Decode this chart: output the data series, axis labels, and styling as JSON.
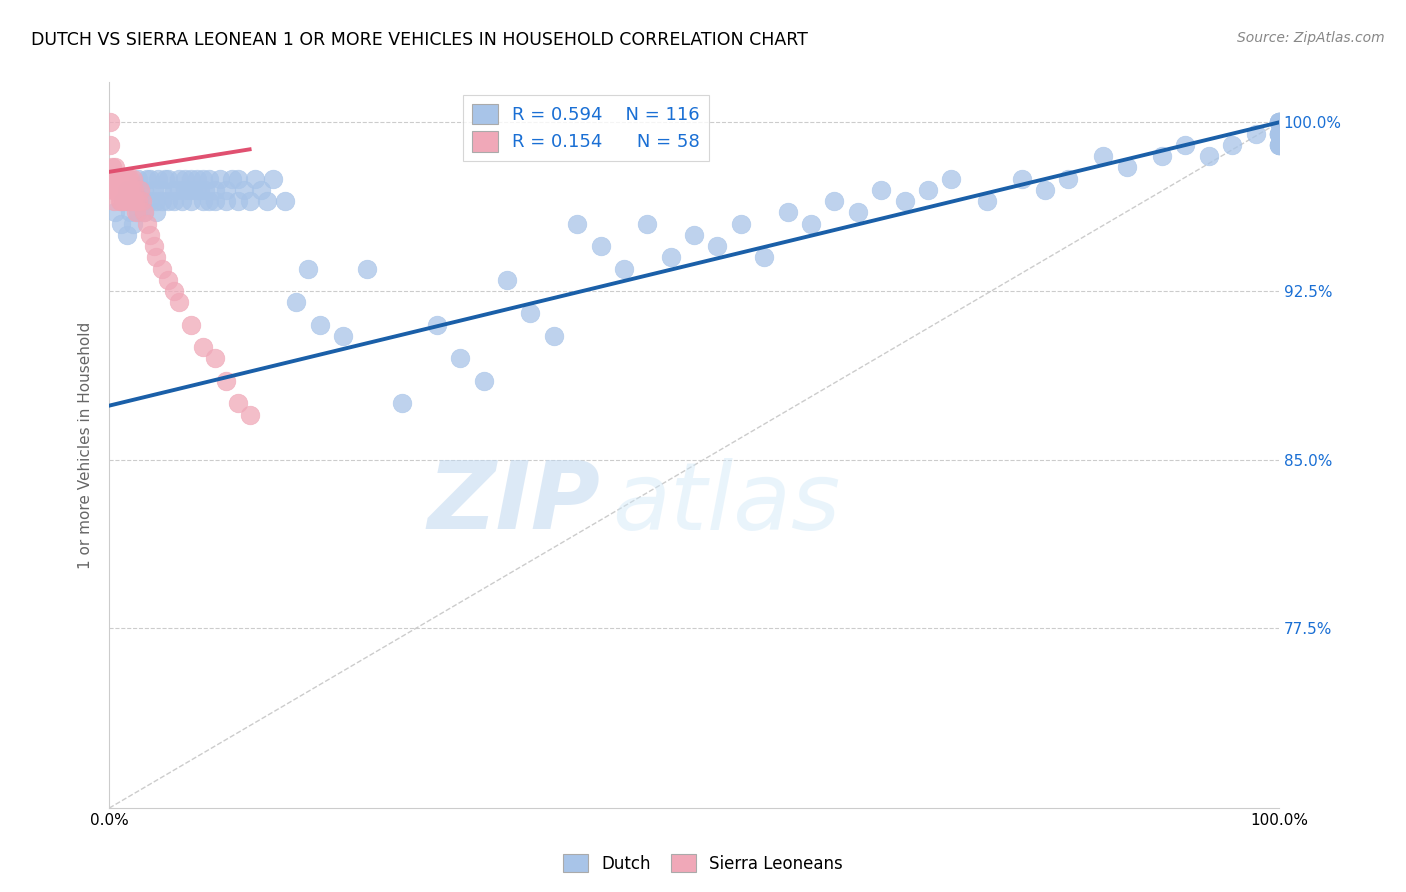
{
  "title": "DUTCH VS SIERRA LEONEAN 1 OR MORE VEHICLES IN HOUSEHOLD CORRELATION CHART",
  "source": "Source: ZipAtlas.com",
  "ylabel": "1 or more Vehicles in Household",
  "xmin": 0.0,
  "xmax": 1.0,
  "ymin": 0.695,
  "ymax": 1.018,
  "yticks": [
    0.775,
    0.85,
    0.925,
    1.0
  ],
  "ytick_labels": [
    "77.5%",
    "85.0%",
    "92.5%",
    "100.0%"
  ],
  "blue_R": 0.594,
  "blue_N": 116,
  "pink_R": 0.154,
  "pink_N": 58,
  "blue_color": "#a8c4e8",
  "pink_color": "#f0a8b8",
  "blue_line_color": "#1a5fa8",
  "pink_line_color": "#e05070",
  "blue_label": "Dutch",
  "pink_label": "Sierra Leoneans",
  "watermark_zip": "ZIP",
  "watermark_atlas": "atlas",
  "blue_scatter_x": [
    0.005,
    0.01,
    0.012,
    0.015,
    0.015,
    0.018,
    0.02,
    0.02,
    0.022,
    0.025,
    0.025,
    0.028,
    0.03,
    0.03,
    0.032,
    0.035,
    0.035,
    0.038,
    0.04,
    0.04,
    0.042,
    0.045,
    0.045,
    0.048,
    0.05,
    0.05,
    0.055,
    0.055,
    0.06,
    0.06,
    0.062,
    0.065,
    0.065,
    0.068,
    0.07,
    0.07,
    0.072,
    0.075,
    0.075,
    0.078,
    0.08,
    0.08,
    0.082,
    0.085,
    0.085,
    0.09,
    0.09,
    0.095,
    0.1,
    0.1,
    0.105,
    0.11,
    0.11,
    0.115,
    0.12,
    0.125,
    0.13,
    0.135,
    0.14,
    0.15,
    0.16,
    0.17,
    0.18,
    0.2,
    0.22,
    0.25,
    0.28,
    0.3,
    0.32,
    0.34,
    0.36,
    0.38,
    0.4,
    0.42,
    0.44,
    0.46,
    0.48,
    0.5,
    0.52,
    0.54,
    0.56,
    0.58,
    0.6,
    0.62,
    0.64,
    0.66,
    0.68,
    0.7,
    0.72,
    0.75,
    0.78,
    0.8,
    0.82,
    0.85,
    0.87,
    0.9,
    0.92,
    0.94,
    0.96,
    0.98,
    1.0,
    1.0,
    1.0,
    1.0,
    1.0,
    1.0,
    1.0,
    1.0,
    1.0,
    1.0,
    1.0,
    1.0,
    1.0,
    1.0,
    1.0,
    1.0
  ],
  "blue_scatter_y": [
    0.96,
    0.955,
    0.965,
    0.95,
    0.97,
    0.96,
    0.955,
    0.965,
    0.97,
    0.96,
    0.975,
    0.965,
    0.97,
    0.96,
    0.975,
    0.965,
    0.975,
    0.97,
    0.96,
    0.965,
    0.975,
    0.97,
    0.965,
    0.975,
    0.965,
    0.975,
    0.97,
    0.965,
    0.97,
    0.975,
    0.965,
    0.97,
    0.975,
    0.97,
    0.975,
    0.965,
    0.97,
    0.97,
    0.975,
    0.97,
    0.965,
    0.975,
    0.97,
    0.965,
    0.975,
    0.965,
    0.97,
    0.975,
    0.965,
    0.97,
    0.975,
    0.965,
    0.975,
    0.97,
    0.965,
    0.975,
    0.97,
    0.965,
    0.975,
    0.965,
    0.92,
    0.935,
    0.91,
    0.905,
    0.935,
    0.875,
    0.91,
    0.895,
    0.885,
    0.93,
    0.915,
    0.905,
    0.955,
    0.945,
    0.935,
    0.955,
    0.94,
    0.95,
    0.945,
    0.955,
    0.94,
    0.96,
    0.955,
    0.965,
    0.96,
    0.97,
    0.965,
    0.97,
    0.975,
    0.965,
    0.975,
    0.97,
    0.975,
    0.985,
    0.98,
    0.985,
    0.99,
    0.985,
    0.99,
    0.995,
    1.0,
    0.995,
    1.0,
    0.99,
    0.995,
    1.0,
    0.99,
    0.995,
    1.0,
    0.995,
    1.0,
    0.99,
    0.995,
    1.0,
    0.99,
    1.0
  ],
  "pink_scatter_x": [
    0.001,
    0.001,
    0.002,
    0.003,
    0.003,
    0.004,
    0.004,
    0.005,
    0.005,
    0.005,
    0.006,
    0.007,
    0.007,
    0.008,
    0.008,
    0.009,
    0.009,
    0.01,
    0.01,
    0.01,
    0.011,
    0.012,
    0.012,
    0.013,
    0.013,
    0.014,
    0.015,
    0.015,
    0.015,
    0.016,
    0.017,
    0.018,
    0.018,
    0.019,
    0.02,
    0.02,
    0.021,
    0.022,
    0.023,
    0.025,
    0.026,
    0.028,
    0.03,
    0.032,
    0.035,
    0.038,
    0.04,
    0.045,
    0.05,
    0.055,
    0.06,
    0.07,
    0.08,
    0.09,
    0.1,
    0.11,
    0.12,
    0.001
  ],
  "pink_scatter_y": [
    0.975,
    0.99,
    0.98,
    0.975,
    0.97,
    0.97,
    0.965,
    0.975,
    0.97,
    0.98,
    0.975,
    0.97,
    0.975,
    0.97,
    0.975,
    0.97,
    0.965,
    0.975,
    0.97,
    0.965,
    0.975,
    0.97,
    0.975,
    0.97,
    0.965,
    0.97,
    0.975,
    0.97,
    0.965,
    0.975,
    0.97,
    0.965,
    0.975,
    0.97,
    0.965,
    0.975,
    0.97,
    0.965,
    0.96,
    0.965,
    0.97,
    0.965,
    0.96,
    0.955,
    0.95,
    0.945,
    0.94,
    0.935,
    0.93,
    0.925,
    0.92,
    0.91,
    0.9,
    0.895,
    0.885,
    0.875,
    0.87,
    1.0
  ],
  "blue_trend_x0": 0.0,
  "blue_trend_y0": 0.874,
  "blue_trend_x1": 1.0,
  "blue_trend_y1": 1.0,
  "pink_trend_x0": 0.0,
  "pink_trend_y0": 0.978,
  "pink_trend_x1": 0.12,
  "pink_trend_y1": 0.988
}
